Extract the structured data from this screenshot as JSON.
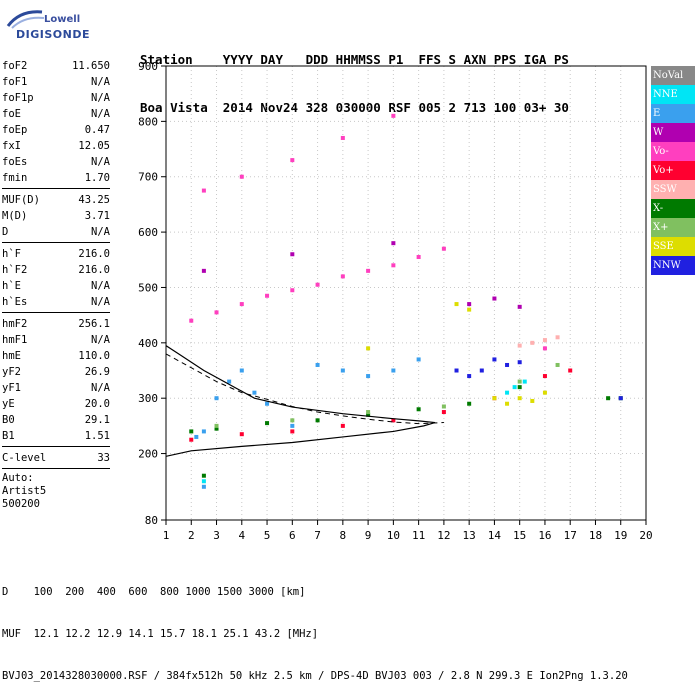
{
  "logo": {
    "top": "Lowell",
    "main": "DIGISONDE"
  },
  "header": {
    "labels": "Station    YYYY DAY   DDD HHMMSS P1  FFS S AXN PPS IGA PS",
    "values": "Boa Vista  2014 Nov24 328 030000 RSF 005 2 713 100 03+ 30"
  },
  "params": [
    [
      [
        "foF2",
        "11.650"
      ],
      [
        "foF1",
        "N/A"
      ],
      [
        "foF1p",
        "N/A"
      ],
      [
        "foE",
        "N/A"
      ],
      [
        "foEp",
        "0.47"
      ],
      [
        "fxI",
        "12.05"
      ],
      [
        "foEs",
        "N/A"
      ],
      [
        "fmin",
        "1.70"
      ]
    ],
    [
      [
        "MUF(D)",
        "43.25"
      ],
      [
        "M(D)",
        "3.71"
      ],
      [
        "D",
        "N/A"
      ]
    ],
    [
      [
        "h`F",
        "216.0"
      ],
      [
        "h`F2",
        "216.0"
      ],
      [
        "h`E",
        "N/A"
      ],
      [
        "h`Es",
        "N/A"
      ]
    ],
    [
      [
        "hmF2",
        "256.1"
      ],
      [
        "hmF1",
        "N/A"
      ],
      [
        "hmE",
        "110.0"
      ],
      [
        "yF2",
        "26.9"
      ],
      [
        "yF1",
        "N/A"
      ],
      [
        "yE",
        "20.0"
      ],
      [
        "B0",
        "29.1"
      ],
      [
        "B1",
        "1.51"
      ]
    ],
    [
      [
        "C-level",
        "33"
      ]
    ]
  ],
  "auto": [
    "Auto:",
    "Artist5",
    "500200"
  ],
  "legend": [
    {
      "label": "NoVal",
      "color": "#888888"
    },
    {
      "label": "NNE",
      "color": "#00e5f5"
    },
    {
      "label": "E",
      "color": "#3aa0ee"
    },
    {
      "label": "W",
      "color": "#b000b0"
    },
    {
      "label": "Vo-",
      "color": "#ff3fbf"
    },
    {
      "label": "Vo+",
      "color": "#ff0030"
    },
    {
      "label": "SSW",
      "color": "#ffb0b0"
    },
    {
      "label": "X-",
      "color": "#007a00"
    },
    {
      "label": "X+",
      "color": "#80c060"
    },
    {
      "label": "SSE",
      "color": "#dddd00"
    },
    {
      "label": "NNW",
      "color": "#2020e0"
    }
  ],
  "footer": {
    "d_row": "D    100  200  400  600  800 1000 1500 3000 [km]",
    "muf_row": "MUF  12.1 12.2 12.9 14.1 15.7 18.1 25.1 43.2 [MHz]",
    "file_row": "BVJ03_2014328030000.RSF / 384fx512h 50 kHz 2.5 km / DPS-4D BVJ03 003 / 2.8 N 299.3 E Ion2Png 1.3.20"
  },
  "chart_data": {
    "type": "scatter",
    "title": "",
    "xlabel": "",
    "ylabel": "",
    "xlim": [
      1,
      20
    ],
    "ylim": [
      80,
      900
    ],
    "xticks": [
      1,
      2,
      3,
      4,
      5,
      6,
      7,
      8,
      9,
      10,
      11,
      12,
      13,
      14,
      15,
      16,
      17,
      18,
      19,
      20
    ],
    "yticks": [
      80,
      200,
      300,
      400,
      500,
      600,
      700,
      800,
      900
    ],
    "grid": true,
    "legend_position": "right",
    "series": [
      {
        "name": "E",
        "color": "#3aa0ee",
        "points": [
          [
            2.2,
            230
          ],
          [
            2.5,
            240
          ],
          [
            3.0,
            300
          ],
          [
            3.5,
            330
          ],
          [
            4.0,
            350
          ],
          [
            4.5,
            310
          ],
          [
            5.0,
            290
          ],
          [
            6.0,
            250
          ],
          [
            7.0,
            360
          ],
          [
            8.0,
            350
          ],
          [
            9.0,
            340
          ],
          [
            10.0,
            350
          ],
          [
            2.5,
            140
          ],
          [
            11.0,
            370
          ]
        ]
      },
      {
        "name": "Vo-",
        "color": "#ff3fbf",
        "points": [
          [
            2.0,
            440
          ],
          [
            3.0,
            455
          ],
          [
            4.0,
            470
          ],
          [
            5.0,
            485
          ],
          [
            6.0,
            495
          ],
          [
            7.0,
            505
          ],
          [
            8.0,
            520
          ],
          [
            9.0,
            530
          ],
          [
            10.0,
            540
          ],
          [
            11.0,
            555
          ],
          [
            12.0,
            570
          ],
          [
            2.5,
            675
          ],
          [
            4.0,
            700
          ],
          [
            6.0,
            730
          ],
          [
            8.0,
            770
          ],
          [
            10.0,
            810
          ],
          [
            16.0,
            390
          ]
        ]
      },
      {
        "name": "Vo+",
        "color": "#ff0030",
        "points": [
          [
            2.0,
            225
          ],
          [
            4.0,
            235
          ],
          [
            6.0,
            240
          ],
          [
            8.0,
            250
          ],
          [
            10.0,
            260
          ],
          [
            12.0,
            275
          ],
          [
            14.0,
            300
          ],
          [
            16.0,
            340
          ],
          [
            17.0,
            350
          ]
        ]
      },
      {
        "name": "W",
        "color": "#b000b0",
        "points": [
          [
            13.0,
            470
          ],
          [
            14.0,
            480
          ],
          [
            15.0,
            465
          ],
          [
            2.5,
            530
          ],
          [
            6.0,
            560
          ],
          [
            10.0,
            580
          ]
        ]
      },
      {
        "name": "X-",
        "color": "#007a00",
        "points": [
          [
            2.0,
            240
          ],
          [
            3.0,
            245
          ],
          [
            5.0,
            255
          ],
          [
            7.0,
            260
          ],
          [
            9.0,
            270
          ],
          [
            11.0,
            280
          ],
          [
            13.0,
            290
          ],
          [
            15.0,
            320
          ],
          [
            18.5,
            300
          ],
          [
            19.0,
            300
          ],
          [
            2.5,
            160
          ]
        ]
      },
      {
        "name": "X+",
        "color": "#80c060",
        "points": [
          [
            3.0,
            250
          ],
          [
            6.0,
            260
          ],
          [
            9.0,
            275
          ],
          [
            12.0,
            285
          ],
          [
            15.0,
            330
          ],
          [
            16.5,
            360
          ]
        ]
      },
      {
        "name": "SSE",
        "color": "#dddd00",
        "points": [
          [
            12.5,
            470
          ],
          [
            13.0,
            460
          ],
          [
            14.0,
            300
          ],
          [
            14.5,
            290
          ],
          [
            15.0,
            300
          ],
          [
            15.5,
            295
          ],
          [
            16.0,
            310
          ],
          [
            9.0,
            390
          ]
        ]
      },
      {
        "name": "NNW",
        "color": "#2020e0",
        "points": [
          [
            12.5,
            350
          ],
          [
            13.0,
            340
          ],
          [
            13.5,
            350
          ],
          [
            14.0,
            370
          ],
          [
            14.5,
            360
          ],
          [
            15.0,
            365
          ],
          [
            19.0,
            300
          ]
        ]
      },
      {
        "name": "NNE",
        "color": "#00e5f5",
        "points": [
          [
            14.8,
            320
          ],
          [
            15.2,
            330
          ],
          [
            14.5,
            310
          ],
          [
            2.5,
            150
          ]
        ]
      },
      {
        "name": "SSW",
        "color": "#ffb0b0",
        "points": [
          [
            15.5,
            400
          ],
          [
            16.0,
            405
          ],
          [
            16.5,
            410
          ],
          [
            15.0,
            395
          ]
        ]
      }
    ],
    "profile_curve": {
      "color": "#000000",
      "points": [
        [
          1.0,
          195
        ],
        [
          2.0,
          205
        ],
        [
          4.0,
          213
        ],
        [
          6.0,
          220
        ],
        [
          8.0,
          230
        ],
        [
          10.0,
          240
        ],
        [
          11.2,
          250
        ],
        [
          11.65,
          256
        ],
        [
          11.0,
          259
        ],
        [
          10.0,
          263
        ],
        [
          8.0,
          272
        ],
        [
          6.0,
          284
        ],
        [
          4.5,
          300
        ],
        [
          3.5,
          325
        ],
        [
          2.5,
          350
        ],
        [
          1.5,
          380
        ],
        [
          1.0,
          395
        ]
      ]
    },
    "dashed_curve": {
      "color": "#000000",
      "points": [
        [
          1.0,
          380
        ],
        [
          2.0,
          355
        ],
        [
          3.0,
          330
        ],
        [
          4.0,
          310
        ],
        [
          5.0,
          298
        ],
        [
          6.0,
          285
        ],
        [
          7.0,
          275
        ],
        [
          8.0,
          268
        ],
        [
          9.0,
          262
        ],
        [
          10.0,
          257
        ],
        [
          11.0,
          254
        ],
        [
          12.0,
          256
        ]
      ]
    }
  }
}
